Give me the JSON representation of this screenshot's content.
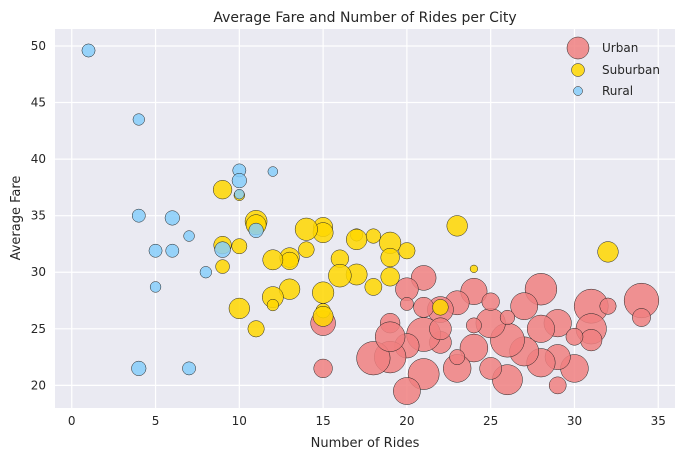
{
  "chart_data": {
    "type": "scatter",
    "title": "Average Fare and Number of Rides per City",
    "xlabel": "Number of Rides",
    "ylabel": "Average Fare",
    "xlim": [
      -1,
      36
    ],
    "ylim": [
      18,
      51.5
    ],
    "xticks": [
      0,
      5,
      10,
      15,
      20,
      25,
      30,
      35
    ],
    "yticks": [
      20,
      25,
      30,
      35,
      40,
      45,
      50
    ],
    "grid": true,
    "legend_position": "top-right",
    "series": [
      {
        "name": "Urban",
        "color": "#f08080",
        "points": [
          [
            34,
            27.5,
            62
          ],
          [
            31,
            27,
            60
          ],
          [
            31,
            25,
            48
          ],
          [
            34,
            26,
            17
          ],
          [
            30,
            21.5,
            40
          ],
          [
            29,
            25.5,
            39
          ],
          [
            29,
            22.5,
            33
          ],
          [
            28,
            28.5,
            52
          ],
          [
            28,
            25,
            39
          ],
          [
            28,
            22,
            42
          ],
          [
            27,
            27,
            38
          ],
          [
            27,
            23,
            44
          ],
          [
            26,
            24,
            60
          ],
          [
            26,
            20.5,
            47
          ],
          [
            25,
            25.5,
            45
          ],
          [
            25,
            21.5,
            25
          ],
          [
            24,
            28.3,
            36
          ],
          [
            24,
            23.3,
            40
          ],
          [
            23,
            27.3,
            30
          ],
          [
            23,
            21.5,
            40
          ],
          [
            22,
            26.7,
            35
          ],
          [
            22,
            23.8,
            25
          ],
          [
            21,
            29.5,
            32
          ],
          [
            21,
            24.5,
            60
          ],
          [
            21,
            21,
            50
          ],
          [
            20,
            28.5,
            27
          ],
          [
            20,
            23.5,
            31
          ],
          [
            20,
            19.5,
            38
          ],
          [
            19,
            25.5,
            20
          ],
          [
            19,
            22.5,
            52
          ],
          [
            18,
            22.4,
            58
          ],
          [
            15,
            25.5,
            32
          ],
          [
            15,
            21.5,
            18
          ],
          [
            32,
            27,
            14
          ],
          [
            31,
            24,
            24
          ],
          [
            30,
            24.3,
            15
          ],
          [
            29,
            20,
            15
          ],
          [
            26,
            26,
            11
          ],
          [
            25,
            27.4,
            16
          ],
          [
            24,
            25.3,
            12
          ],
          [
            23,
            22.5,
            12
          ],
          [
            22,
            25,
            25
          ],
          [
            21,
            26.9,
            21
          ],
          [
            20,
            27.2,
            9
          ],
          [
            19,
            24.3,
            46
          ]
        ]
      },
      {
        "name": "Suburban",
        "color": "#ffd700",
        "points": [
          [
            32,
            31.8,
            22
          ],
          [
            23,
            34.1,
            22
          ],
          [
            22,
            26.9,
            13
          ],
          [
            20,
            31.9,
            14
          ],
          [
            19,
            32.6,
            24
          ],
          [
            19,
            31.3,
            18
          ],
          [
            19,
            29.6,
            18
          ],
          [
            18,
            33.2,
            11
          ],
          [
            18,
            28.7,
            15
          ],
          [
            17,
            33.3,
            8
          ],
          [
            17,
            32.9,
            22
          ],
          [
            17,
            29.8,
            23
          ],
          [
            16,
            31.2,
            16
          ],
          [
            16,
            29.7,
            27
          ],
          [
            15,
            34,
            19
          ],
          [
            15,
            33.5,
            21
          ],
          [
            15,
            28.2,
            24
          ],
          [
            15,
            26.6,
            11
          ],
          [
            15,
            26.1,
            21
          ],
          [
            14,
            33.8,
            26
          ],
          [
            14,
            32,
            13
          ],
          [
            13,
            31.3,
            20
          ],
          [
            13,
            31,
            16
          ],
          [
            13,
            28.5,
            22
          ],
          [
            12,
            31.1,
            21
          ],
          [
            12,
            27.8,
            23
          ],
          [
            12,
            27.1,
            7
          ],
          [
            11,
            34.5,
            25
          ],
          [
            11,
            34.2,
            21
          ],
          [
            11,
            25,
            14
          ],
          [
            10,
            36.8,
            6
          ],
          [
            10,
            32.3,
            12
          ],
          [
            10,
            26.8,
            22
          ],
          [
            9,
            37.3,
            18
          ],
          [
            9,
            32.4,
            16
          ],
          [
            9,
            30.5,
            10
          ],
          [
            24,
            30.3,
            3
          ]
        ]
      },
      {
        "name": "Rural",
        "color": "#87cefa",
        "points": [
          [
            1,
            49.6,
            9
          ],
          [
            4,
            43.5,
            7
          ],
          [
            4,
            35,
            9
          ],
          [
            4,
            21.5,
            11
          ],
          [
            5,
            31.9,
            9
          ],
          [
            5,
            28.7,
            6
          ],
          [
            6,
            34.8,
            11
          ],
          [
            6,
            31.9,
            9
          ],
          [
            7,
            33.2,
            6
          ],
          [
            7,
            21.5,
            9
          ],
          [
            8,
            30,
            7
          ],
          [
            9,
            32,
            13
          ],
          [
            10,
            39,
            9
          ],
          [
            10,
            38.1,
            11
          ],
          [
            10,
            36.9,
            5
          ],
          [
            11,
            33.7,
            11
          ],
          [
            12,
            38.9,
            5
          ]
        ]
      }
    ]
  }
}
